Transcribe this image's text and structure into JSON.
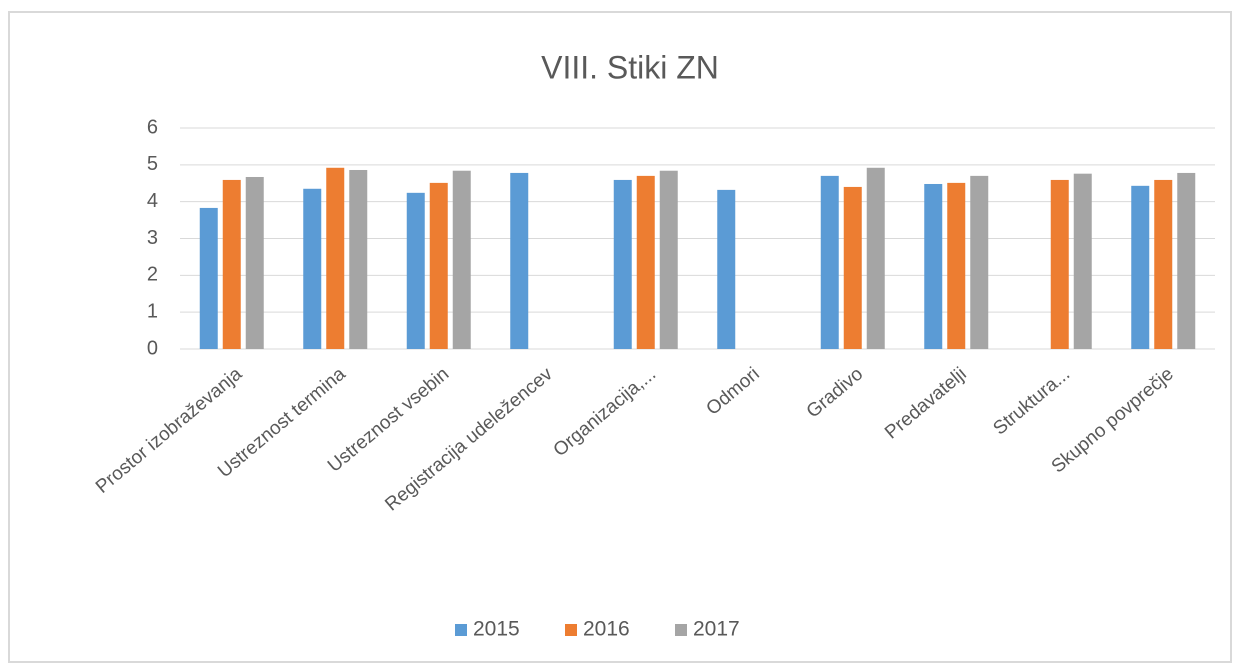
{
  "chart_data": {
    "type": "bar",
    "title": "VIII. Stiki ZN",
    "categories": [
      "Prostor izobraževanja",
      "Ustreznost termina",
      "Ustreznost vsebin",
      "Registracija udeležencev",
      "Organizacija,...",
      "Odmori",
      "Gradivo",
      "Predavatelji",
      "Struktura...",
      "Skupno povprečje"
    ],
    "series": [
      {
        "name": "2015",
        "color": "#5b9bd5",
        "values": [
          3.83,
          4.35,
          4.24,
          4.78,
          4.59,
          4.32,
          4.7,
          4.48,
          null,
          4.43
        ]
      },
      {
        "name": "2016",
        "color": "#ed7d31",
        "values": [
          4.59,
          4.92,
          4.51,
          null,
          4.7,
          null,
          4.4,
          4.51,
          4.59,
          4.59
        ]
      },
      {
        "name": "2017",
        "color": "#a5a5a5",
        "values": [
          4.67,
          4.86,
          4.84,
          null,
          4.84,
          null,
          4.92,
          4.7,
          4.76,
          4.78
        ]
      }
    ],
    "ylim": [
      0,
      6
    ],
    "yticks": [
      0,
      1,
      2,
      3,
      4,
      5,
      6
    ],
    "grid": true,
    "legend": "bottom"
  }
}
